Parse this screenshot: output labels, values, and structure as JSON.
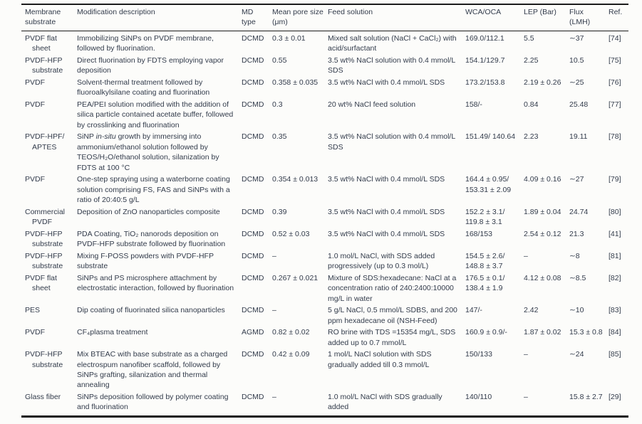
{
  "table": {
    "columns": [
      {
        "key": "substrate",
        "label": "Membrane substrate"
      },
      {
        "key": "description",
        "label": "Modification description"
      },
      {
        "key": "md_type",
        "label": "MD type"
      },
      {
        "key": "pore_size",
        "label": "Mean pore size (μm)"
      },
      {
        "key": "feed",
        "label": "Feed solution"
      },
      {
        "key": "wca_oca",
        "label": "WCA/OCA"
      },
      {
        "key": "lep",
        "label": "LEP (Bar)"
      },
      {
        "key": "flux",
        "label": "Flux (LMH)"
      },
      {
        "key": "ref",
        "label": "Ref."
      }
    ],
    "rows": [
      {
        "substrate": "PVDF flat sheet",
        "description": "Immobilizing SiNPs on PVDF membrane, followed by fluorination.",
        "md_type": "DCMD",
        "pore_size": "0.3 ± 0.01",
        "feed": "Mixed salt solution (NaCl + CaCl₂) with acid/surfactant",
        "wca_oca": "169.0/112.1",
        "lep": "5.5",
        "flux": "∼37",
        "ref": "[74]"
      },
      {
        "substrate": "PVDF-HFP substrate",
        "description": "Direct fluorination by FDTS employing vapor deposition",
        "md_type": "DCMD",
        "pore_size": "0.55",
        "feed": "3.5 wt% NaCl solution with 0.4 mmol/L SDS",
        "wca_oca": "154.1/129.7",
        "lep": "2.25",
        "flux": "10.5",
        "ref": "[75]"
      },
      {
        "substrate": "PVDF",
        "description": "Solvent-thermal treatment followed by fluoroalkylsilane coating and fluorination",
        "md_type": "DCMD",
        "pore_size": "0.358 ± 0.035",
        "feed": "3.5 wt% NaCl with 0.4 mmol/L SDS",
        "wca_oca": "173.2/153.8",
        "lep": "2.19 ± 0.26",
        "flux": "∼25",
        "ref": "[76]"
      },
      {
        "substrate": "PVDF",
        "description": "PEA/PEI solution modified with the addition of silica particle contained acetate buffer, followed by crosslinking and fluorination",
        "md_type": "DCMD",
        "pore_size": "0.3",
        "feed": "20 wt% NaCl feed solution",
        "wca_oca": "158/-",
        "lep": "0.84",
        "flux": "25.48",
        "ref": "[77]"
      },
      {
        "substrate": "PVDF-HPF/ APTES",
        "description": [
          {
            "t": "SiNP "
          },
          {
            "t": "in-situ",
            "i": true
          },
          {
            "t": " growth by immersing into ammonium/ethanol solution followed by TEOS/H₂O/ethanol solution, silanization by FDTS at 100 °C"
          }
        ],
        "md_type": "DCMD",
        "pore_size": "0.35",
        "feed": "3.5 wt% NaCl solution with 0.4 mmol/L SDS",
        "wca_oca": "151.49/ 140.64",
        "lep": "2.23",
        "flux": "19.11",
        "ref": "[78]"
      },
      {
        "substrate": "PVDF",
        "description": "One-step spraying using a waterborne coating solution comprising FS, FAS and SiNPs with a ratio of 20:40:5 g/L",
        "md_type": "DCMD",
        "pore_size": "0.354 ± 0.013",
        "feed": "3.5 wt% NaCl with 0.4 mmol/L SDS",
        "wca_oca": "164.4 ± 0.95/ 153.31 ± 2.09",
        "lep": "4.09 ± 0.16",
        "flux": "∼27",
        "ref": "[79]"
      },
      {
        "substrate": "Commercial PVDF",
        "description": "Deposition of ZnO nanoparticles composite",
        "md_type": "DCMD",
        "pore_size": "0.39",
        "feed": "3.5 wt% NaCl with 0.4 mmol/L SDS",
        "wca_oca": "152.2 ± 3.1/ 119.8 ± 3.1",
        "lep": "1.89 ± 0.04",
        "flux": "24.74",
        "ref": "[80]"
      },
      {
        "substrate": "PVDF-HFP substrate",
        "description": "PDA Coating, TiO₂ nanorods deposition on PVDF-HFP substrate followed by fluorination",
        "md_type": "DCMD",
        "pore_size": "0.52 ± 0.03",
        "feed": "3.5 wt% NaCl with 0.4 mmol/L SDS",
        "wca_oca": "168/153",
        "lep": "2.54 ± 0.12",
        "flux": "21.3",
        "ref": "[41]"
      },
      {
        "substrate": "PVDF-HFP substrate",
        "description": "Mixing F-POSS powders with PVDF-HFP substrate",
        "md_type": "DCMD",
        "pore_size": "–",
        "feed": "1.0 mol/L NaCl, with SDS added progressively (up to 0.3 mol/L)",
        "wca_oca": "154.5 ± 2.6/ 148.8 ± 3.7",
        "lep": "–",
        "flux": "∼8",
        "ref": "[81]"
      },
      {
        "substrate": "PVDF flat sheet",
        "description": "SiNPs and PS microsphere attachment by electrostatic interaction, followed by fluorination",
        "md_type": "DCMD",
        "pore_size": "0.267 ± 0.021",
        "feed": "Mixture of SDS:hexadecane: NaCl at a concentration ratio of 240:2400:10000 mg/L in water",
        "wca_oca": "176.5 ± 0.1/ 138.4 ± 1.9",
        "lep": "4.12 ± 0.08",
        "flux": "∼8.5",
        "ref": "[82]"
      },
      {
        "substrate": "PES",
        "description": "Dip coating of fluorinated silica nanoparticles",
        "md_type": "DCMD",
        "pore_size": "–",
        "feed": "5 g/L NaCl, 0.5 mmol/L SDBS, and 200 ppm hexadecane oil (NSH-Feed)",
        "wca_oca": "147/-",
        "lep": "2.42",
        "flux": "∼10",
        "ref": "[83]"
      },
      {
        "substrate": "PVDF",
        "description": "CF₄plasma treatment",
        "md_type": "AGMD",
        "pore_size": "0.82 ± 0.02",
        "feed": "RO brine with TDS =15354 mg/L, SDS added up to 0.7 mmol/L",
        "wca_oca": "160.9 ± 0.9/-",
        "lep": "1.87 ± 0.02",
        "flux": "15.3 ± 0.8",
        "ref": "[84]"
      },
      {
        "substrate": "PVDF-HFP substrate",
        "description": "Mix BTEAC with base substrate as a charged electrospum nanofiber scaffold, followed by SiNPs grafting, silanization and thermal annealing",
        "md_type": "DCMD",
        "pore_size": "0.42 ± 0.09",
        "feed": "1 mol/L NaCl solution with SDS gradually added till 0.3 mmol/L",
        "wca_oca": "150/133",
        "lep": "–",
        "flux": "∼24",
        "ref": "[85]"
      },
      {
        "substrate": "Glass fiber",
        "description": "SiNPs deposition followed by polymer coating and fluorination",
        "md_type": "DCMD",
        "pore_size": "–",
        "feed": "1.0 mol/L NaCl with SDS gradually added",
        "wca_oca": "140/110",
        "lep": "–",
        "flux": "15.8 ± 2.7",
        "ref": "[29]"
      }
    ]
  }
}
